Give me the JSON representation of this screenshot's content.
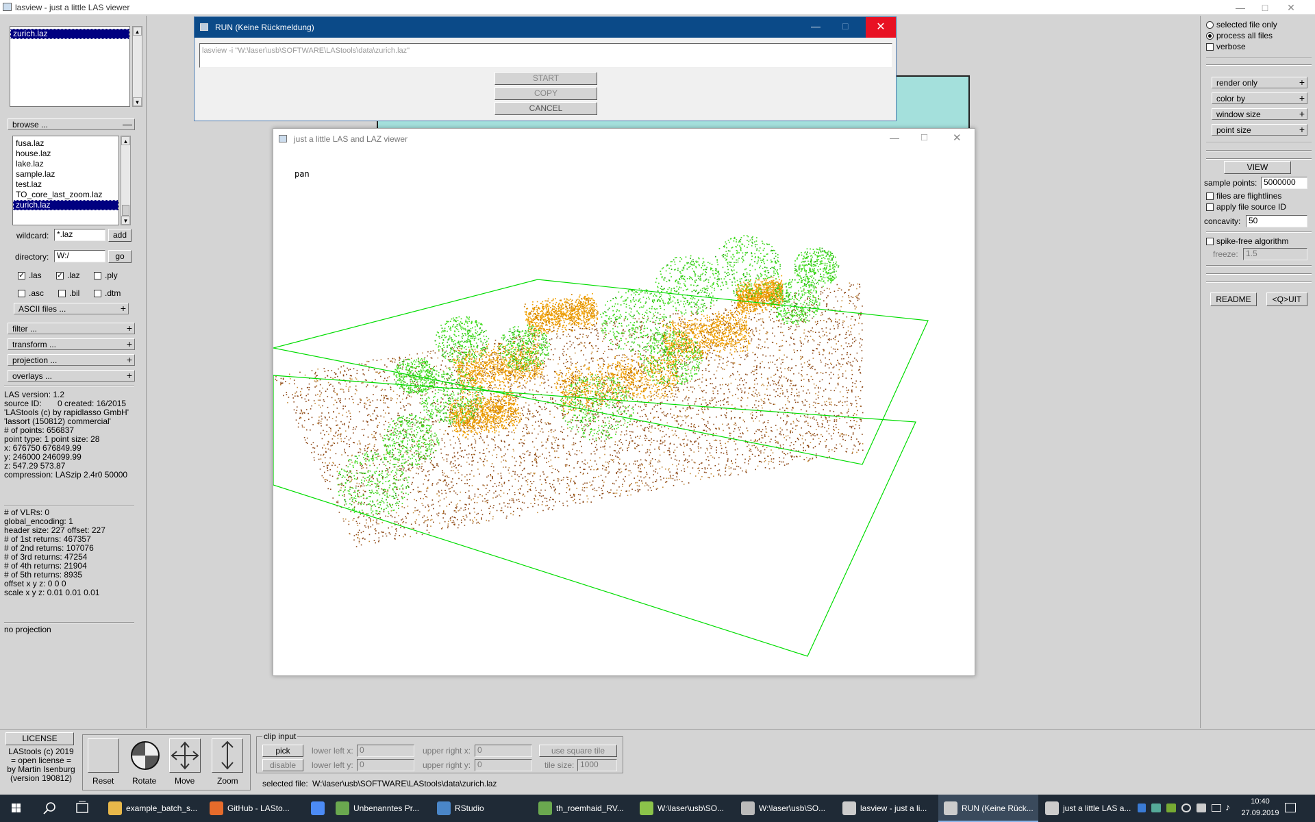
{
  "main_window": {
    "title": "lasview - just a little LAS viewer"
  },
  "left_panel": {
    "top_list": {
      "items": [
        "zurich.laz"
      ],
      "selected": 0
    },
    "browse_label": "browse ...",
    "file_list": {
      "items": [
        "fusa.laz",
        "house.laz",
        "lake.laz",
        "sample.laz",
        "test.laz",
        "TO_core_last_zoom.laz",
        "zurich.laz"
      ],
      "selected": 6
    },
    "wildcard_label": "wildcard:",
    "wildcard_value": "*.laz",
    "add_label": "add",
    "directory_label": "directory:",
    "directory_value": "W:/",
    "go_label": "go",
    "ext_row1": [
      {
        "label": ".las",
        "checked": true
      },
      {
        "label": ".laz",
        "checked": true
      },
      {
        "label": ".ply",
        "checked": false
      }
    ],
    "ext_row2": [
      {
        "label": ".asc",
        "checked": false
      },
      {
        "label": ".bil",
        "checked": false
      },
      {
        "label": ".dtm",
        "checked": false
      }
    ],
    "ascii_label": "ASCII files ...",
    "groups": [
      "filter ...",
      "transform ...",
      "projection ...",
      "overlays ..."
    ],
    "header_info": [
      "LAS version: 1.2",
      "source ID:       0 created: 16/2015",
      "'LAStools (c) by rapidlasso GmbH'",
      "'lassort (150812) commercial'",
      "# of points: 656837",
      "point type: 1 point size: 28",
      "x: 676750 676849.99",
      "y: 246000 246099.99",
      "z: 547.29 573.87",
      "compression: LASzip 2.4r0 50000"
    ],
    "vlr_info": [
      "# of VLRs: 0",
      "global_encoding: 1",
      "header size: 227 offset: 227",
      "# of 1st returns: 467357",
      "# of 2nd returns: 107076",
      "# of 3rd returns: 47254",
      "# of 4th returns: 21904",
      "# of 5th returns: 8935",
      "offset x y z: 0 0 0",
      "scale x y z: 0.01 0.01 0.01"
    ],
    "projection_info": "no projection"
  },
  "run_dialog": {
    "title": "RUN (Keine Rückmeldung)",
    "command": "lasview -i \"W:\\laser\\usb\\SOFTWARE\\LAStools\\data\\zurich.laz\"",
    "start": "START",
    "copy": "COPY",
    "cancel": "CANCEL"
  },
  "viewer": {
    "title": "just a little LAS and LAZ viewer",
    "mode": "pan"
  },
  "right_panel": {
    "radios": [
      {
        "label": "selected file only",
        "checked": false
      },
      {
        "label": "process all files",
        "checked": true
      }
    ],
    "verbose_label": "verbose",
    "groups": [
      "render only",
      "color by",
      "window size",
      "point size"
    ],
    "view_label": "VIEW",
    "sample_points_label": "sample points:",
    "sample_points_value": "5000000",
    "flightlines_label": "files are flightlines",
    "source_id_label": "apply file source ID",
    "concavity_label": "concavity:",
    "concavity_value": "50",
    "spike_free_label": "spike-free algorithm",
    "freeze_label": "freeze:",
    "freeze_value": "1.5",
    "readme_label": "README",
    "quit_label": "<Q>UIT"
  },
  "bottom": {
    "license_label": "LICENSE",
    "license_text": [
      "LAStools (c) 2019",
      "= open license =",
      "by Martin Isenburg",
      "(version 190812)"
    ],
    "nav": [
      {
        "label": "Reset",
        "icon": "reset-icon"
      },
      {
        "label": "Rotate",
        "icon": "rotate-icon"
      },
      {
        "label": "Move",
        "icon": "move-icon"
      },
      {
        "label": "Zoom",
        "icon": "zoom-icon"
      }
    ],
    "clip_title": "clip input",
    "pick_label": "pick",
    "disable_label": "disable",
    "lower_left_x_label": "lower left x:",
    "lower_left_x": "0",
    "lower_left_y_label": "lower left y:",
    "lower_left_y": "0",
    "upper_right_x_label": "upper right x:",
    "upper_right_x": "0",
    "upper_right_y_label": "upper right y:",
    "upper_right_y": "0",
    "square_tile_label": "use square tile",
    "tile_size_label": "tile size:",
    "tile_size": "1000",
    "selected_file_label": "selected file:",
    "selected_file": "W:\\laser\\usb\\SOFTWARE\\LAStools\\data\\zurich.laz"
  },
  "taskbar": {
    "items": [
      {
        "label": "example_batch_s...",
        "color": "#e8b84a"
      },
      {
        "label": "GitHub - LASto...",
        "color": "#e66b2b"
      },
      {
        "label": "",
        "color": "#4c8bf5"
      },
      {
        "label": "Unbenanntes Pr...",
        "color": "#6aa84f"
      },
      {
        "label": "RStudio",
        "color": "#4a86c8"
      },
      {
        "label": "th_roemhaid_RV...",
        "color": "#6aa84f"
      },
      {
        "label": "W:\\laser\\usb\\SO...",
        "color": "#8bc34a"
      },
      {
        "label": "W:\\laser\\usb\\SO...",
        "color": "#bbbbbb"
      },
      {
        "label": "lasview - just a li...",
        "color": "#cccccc"
      },
      {
        "label": "RUN (Keine Rück...",
        "color": "#cccccc"
      },
      {
        "label": "just a little LAS a...",
        "color": "#cccccc"
      }
    ],
    "active_index": 9,
    "time": "10:40",
    "date": "27.09.2019"
  },
  "colors": {
    "ground": "#8b4513",
    "building": "#f0a000",
    "vegetation": "#44dd22",
    "bbox": "#00dd00",
    "selection": "#000080"
  }
}
